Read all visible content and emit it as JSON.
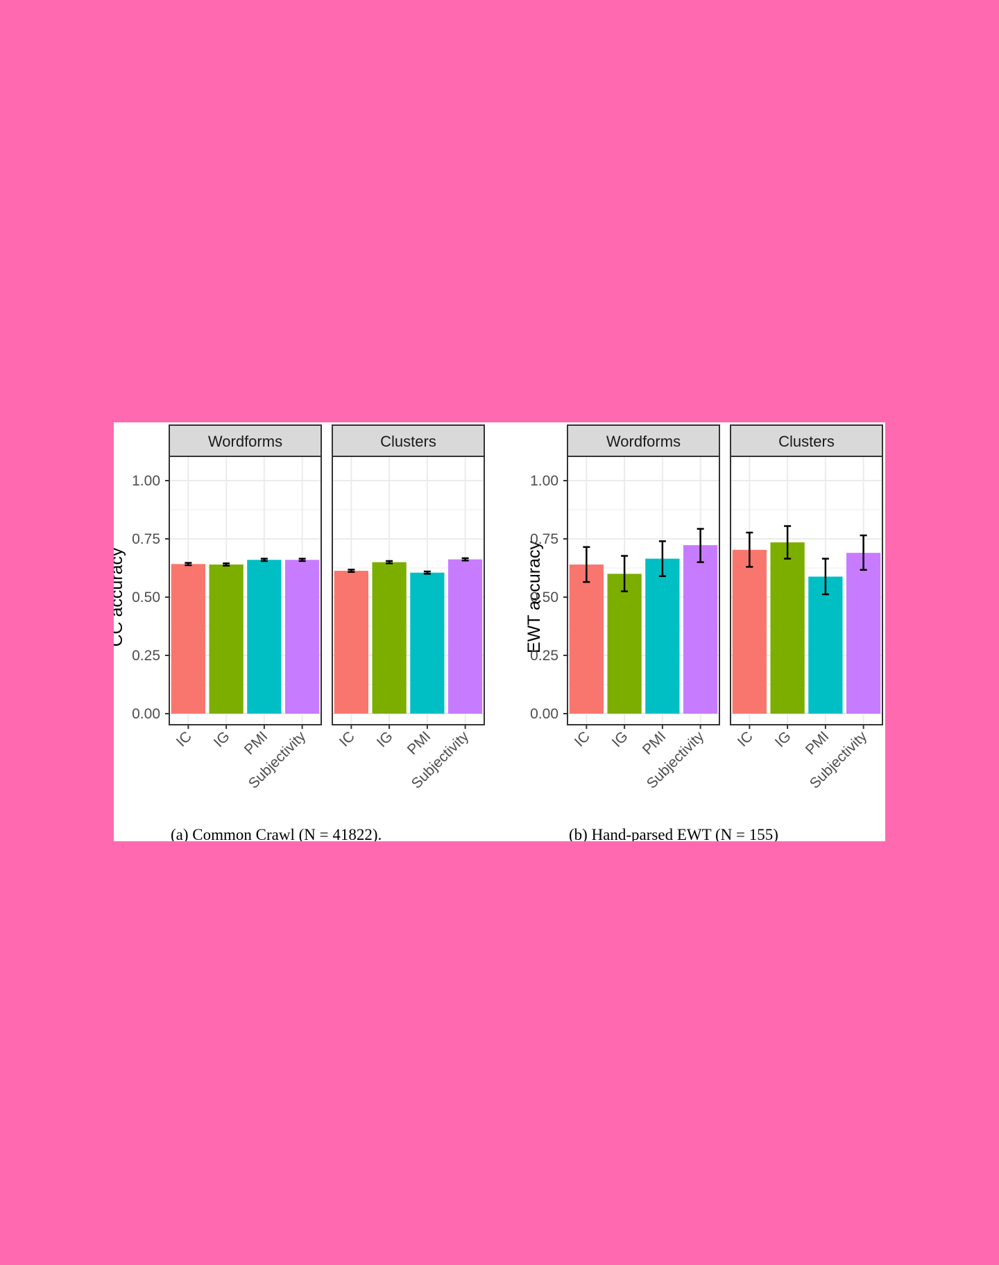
{
  "colors": {
    "background": "#ff69b0",
    "IC": "#f8766d",
    "IG": "#7cae00",
    "PMI": "#00bfc4",
    "Subjectivity": "#c77cff",
    "strip": "#d9d9d9",
    "grid": "#ebebeb"
  },
  "chart_data": [
    {
      "type": "bar",
      "ylabel": "CC accuracy",
      "caption": "(a) Common Crawl (N = 41822).",
      "ylim": [
        0,
        1.1
      ],
      "yticks": [
        "0.00",
        "0.25",
        "0.50",
        "0.75",
        "1.00"
      ],
      "ytick_values": [
        0,
        0.25,
        0.5,
        0.75,
        1.0
      ],
      "categories": [
        "IC",
        "IG",
        "PMI",
        "Subjectivity"
      ],
      "grid": true,
      "panels": [
        {
          "name": "Wordforms",
          "values": [
            0.642,
            0.64,
            0.66,
            0.66
          ],
          "err_low": [
            0.637,
            0.635,
            0.655,
            0.655
          ],
          "err_high": [
            0.647,
            0.645,
            0.665,
            0.665
          ]
        },
        {
          "name": "Clusters",
          "values": [
            0.613,
            0.65,
            0.605,
            0.662
          ],
          "err_low": [
            0.608,
            0.645,
            0.6,
            0.657
          ],
          "err_high": [
            0.618,
            0.655,
            0.61,
            0.667
          ]
        }
      ]
    },
    {
      "type": "bar",
      "ylabel": "EWT accuracy",
      "caption": "(b) Hand-parsed EWT (N = 155)",
      "ylim": [
        0,
        1.1
      ],
      "yticks": [
        "0.00",
        "0.25",
        "0.50",
        "0.75",
        "1.00"
      ],
      "ytick_values": [
        0,
        0.25,
        0.5,
        0.75,
        1.0
      ],
      "categories": [
        "IC",
        "IG",
        "PMI",
        "Subjectivity"
      ],
      "grid": true,
      "panels": [
        {
          "name": "Wordforms",
          "values": [
            0.64,
            0.6,
            0.665,
            0.723
          ],
          "err_low": [
            0.565,
            0.525,
            0.59,
            0.65
          ],
          "err_high": [
            0.715,
            0.677,
            0.74,
            0.793
          ]
        },
        {
          "name": "Clusters",
          "values": [
            0.703,
            0.735,
            0.588,
            0.69
          ],
          "err_low": [
            0.63,
            0.665,
            0.512,
            0.617
          ],
          "err_high": [
            0.777,
            0.805,
            0.665,
            0.765
          ]
        }
      ]
    }
  ]
}
